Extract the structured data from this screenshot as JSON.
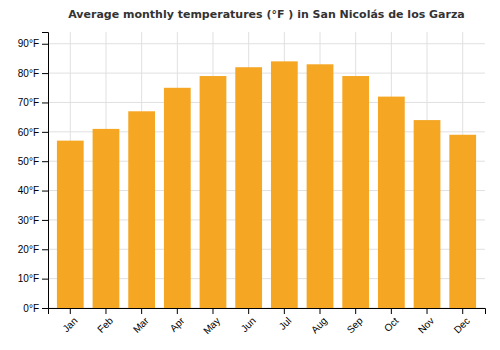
{
  "chart_data": {
    "type": "bar",
    "title": "Average monthly temperatures (°F ) in San Nicolás de los Garza",
    "categories": [
      "Jan",
      "Feb",
      "Mar",
      "Apr",
      "May",
      "Jun",
      "Jul",
      "Aug",
      "Sep",
      "Oct",
      "Nov",
      "Dec"
    ],
    "values": [
      57,
      61,
      67,
      75,
      79,
      82,
      84,
      83,
      79,
      72,
      64,
      59
    ],
    "color": "#F5A623",
    "ylim": [
      0,
      94
    ],
    "yticks": [
      {
        "value": 0,
        "label": "0°F"
      },
      {
        "value": 10,
        "label": "10°F"
      },
      {
        "value": 20,
        "label": "20°F"
      },
      {
        "value": 30,
        "label": "30°F"
      },
      {
        "value": 40,
        "label": "40°F"
      },
      {
        "value": 50,
        "label": "50°F"
      },
      {
        "value": 60,
        "label": "60°F"
      },
      {
        "value": 70,
        "label": "70°F"
      },
      {
        "value": 80,
        "label": "80°F"
      },
      {
        "value": 90,
        "label": "90°F"
      }
    ],
    "grid": true
  }
}
